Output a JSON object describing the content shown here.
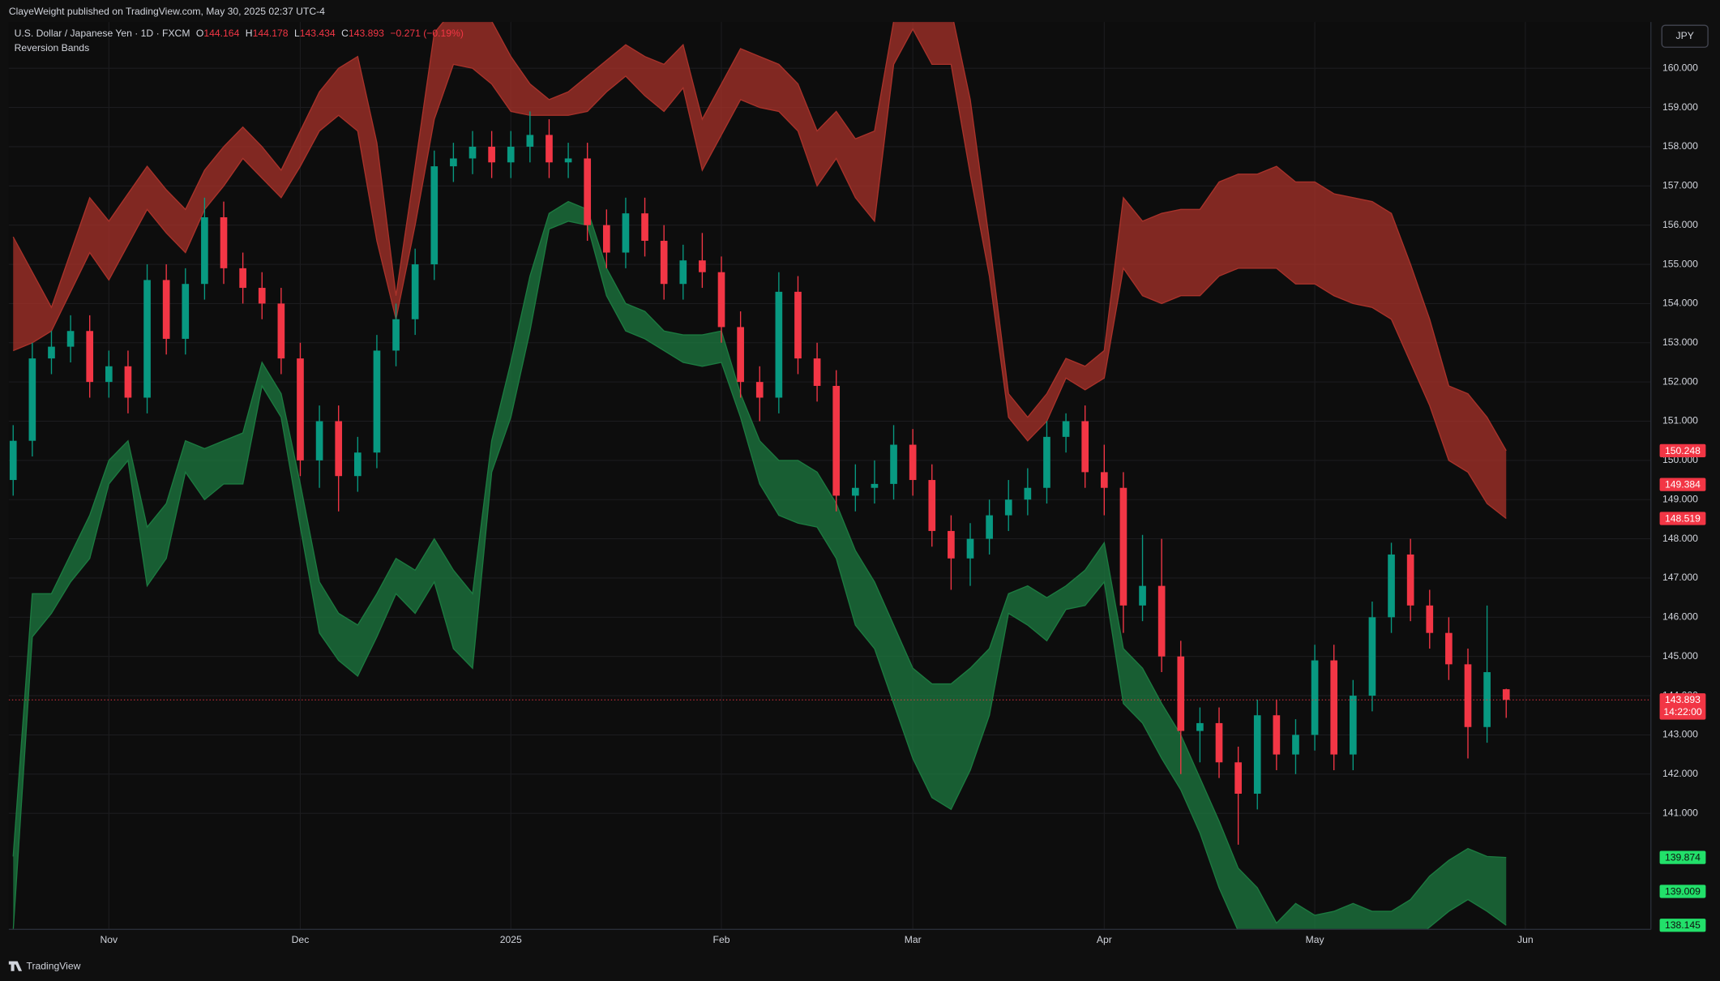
{
  "header": {
    "publisher": "ClayeWeight published on TradingView.com, May 30, 2025 02:37 UTC-4",
    "ohlc_letters": [
      "O",
      "H",
      "L",
      "C"
    ],
    "change": "−0.271 (−0.19%)",
    "indicator": "Reversion Bands",
    "currency": "JPY",
    "brand": "TradingView"
  },
  "chart_data": {
    "type": "candlestick",
    "title": "U.S. Dollar / Japanese Yen · 1D · FXCM",
    "categories": [
      null,
      null,
      null,
      null,
      null,
      "Nov",
      null,
      null,
      null,
      null,
      null,
      null,
      null,
      null,
      null,
      "Dec",
      null,
      null,
      null,
      null,
      null,
      null,
      null,
      null,
      null,
      null,
      "2025",
      null,
      null,
      null,
      null,
      null,
      null,
      null,
      null,
      null,
      null,
      "Feb",
      null,
      null,
      null,
      null,
      null,
      null,
      null,
      null,
      null,
      "Mar",
      null,
      null,
      null,
      null,
      null,
      null,
      null,
      null,
      null,
      "Apr",
      null,
      null,
      null,
      null,
      null,
      null,
      null,
      null,
      null,
      null,
      "May",
      null,
      null,
      null,
      null,
      null,
      null,
      null,
      null,
      null,
      null,
      "Jun"
    ],
    "open": [
      149.5,
      150.5,
      152.6,
      152.9,
      153.3,
      152.0,
      152.4,
      151.6,
      154.6,
      153.1,
      154.5,
      156.2,
      154.9,
      154.4,
      154.0,
      152.6,
      150.0,
      151.0,
      149.6,
      150.2,
      152.8,
      153.6,
      155.0,
      157.5,
      157.7,
      158.0,
      157.6,
      158.0,
      158.3,
      157.6,
      157.7,
      156.0,
      155.3,
      156.3,
      155.6,
      154.5,
      155.1,
      154.8,
      153.4,
      152.0,
      151.6,
      154.3,
      152.6,
      151.9,
      149.1,
      149.3,
      149.4,
      150.4,
      149.5,
      148.2,
      147.5,
      148.0,
      148.6,
      149.0,
      149.3,
      150.6,
      151.0,
      149.7,
      149.3,
      146.3,
      146.8,
      145.0,
      143.1,
      143.3,
      142.3,
      141.5,
      143.5,
      142.5,
      143.0,
      144.9,
      142.5,
      144.0,
      146.0,
      147.6,
      146.3,
      145.6,
      144.8,
      143.2,
      144.164,
      null
    ],
    "high": [
      150.9,
      153.0,
      153.3,
      153.7,
      153.7,
      152.8,
      152.8,
      155.0,
      155.0,
      154.9,
      156.7,
      156.6,
      155.3,
      154.8,
      154.4,
      153.0,
      151.4,
      151.4,
      150.6,
      153.2,
      154.0,
      155.4,
      157.9,
      158.1,
      158.4,
      158.4,
      158.4,
      158.9,
      158.7,
      158.1,
      158.1,
      156.4,
      156.7,
      156.7,
      156.0,
      155.5,
      155.8,
      155.2,
      153.8,
      152.4,
      154.8,
      154.7,
      153.0,
      152.3,
      149.9,
      150.0,
      150.9,
      150.8,
      149.9,
      148.6,
      148.4,
      149.0,
      149.5,
      149.8,
      151.0,
      151.2,
      151.4,
      150.4,
      149.7,
      148.1,
      148.0,
      145.4,
      143.7,
      143.7,
      142.7,
      143.9,
      143.9,
      143.4,
      145.3,
      145.3,
      144.4,
      146.4,
      147.9,
      148.0,
      146.7,
      146.0,
      145.2,
      146.3,
      144.178,
      null
    ],
    "low": [
      149.1,
      150.1,
      152.2,
      152.5,
      151.6,
      151.6,
      151.2,
      151.2,
      152.7,
      152.7,
      154.1,
      154.5,
      154.0,
      153.6,
      152.2,
      149.6,
      149.3,
      148.7,
      149.2,
      149.8,
      152.4,
      153.2,
      154.6,
      157.1,
      157.3,
      157.2,
      157.2,
      157.6,
      157.2,
      157.2,
      155.6,
      154.9,
      154.9,
      155.2,
      154.1,
      154.1,
      154.4,
      153.0,
      151.6,
      151.0,
      151.2,
      152.2,
      151.5,
      148.7,
      148.7,
      148.9,
      149.0,
      149.1,
      147.8,
      146.7,
      146.8,
      147.6,
      148.2,
      148.6,
      148.9,
      150.2,
      149.3,
      148.6,
      145.6,
      145.9,
      144.6,
      142.0,
      142.3,
      141.9,
      140.2,
      141.1,
      142.1,
      142.0,
      142.6,
      142.1,
      142.1,
      143.6,
      145.6,
      145.9,
      145.2,
      144.4,
      142.4,
      142.8,
      143.434,
      null
    ],
    "close": [
      150.5,
      152.6,
      152.9,
      153.3,
      152.0,
      152.4,
      151.6,
      154.6,
      153.1,
      154.5,
      156.2,
      154.9,
      154.4,
      154.0,
      152.6,
      150.0,
      151.0,
      149.6,
      150.2,
      152.8,
      153.6,
      155.0,
      157.5,
      157.7,
      158.0,
      157.6,
      158.0,
      158.3,
      157.6,
      157.7,
      156.0,
      155.3,
      156.3,
      155.6,
      154.5,
      155.1,
      154.8,
      153.4,
      152.0,
      151.6,
      154.3,
      152.6,
      151.9,
      149.1,
      149.3,
      149.4,
      150.4,
      149.5,
      148.2,
      147.5,
      148.0,
      148.6,
      149.0,
      149.3,
      150.6,
      151.0,
      149.7,
      149.3,
      146.3,
      146.8,
      145.0,
      143.1,
      143.3,
      142.3,
      141.5,
      143.5,
      142.5,
      143.0,
      144.9,
      142.5,
      144.0,
      146.0,
      147.6,
      146.3,
      145.6,
      144.8,
      143.2,
      144.6,
      143.893,
      null
    ],
    "change": "−0.271 (−0.19%)",
    "up_color": "#089981",
    "down_color": "#f23645",
    "bands": [
      {
        "color": "#a8322a",
        "tag_color": "#f23645",
        "upper": [
          155.7,
          154.8,
          153.9,
          155.3,
          156.7,
          156.1,
          156.8,
          157.5,
          156.9,
          156.4,
          157.4,
          158.0,
          158.5,
          158.0,
          157.4,
          158.4,
          159.4,
          160.0,
          160.3,
          158.1,
          154.2,
          157.5,
          160.9,
          161.5,
          161.6,
          161.2,
          160.3,
          159.6,
          159.2,
          159.4,
          159.8,
          160.2,
          160.6,
          160.3,
          160.1,
          160.6,
          158.7,
          159.6,
          160.5,
          160.3,
          160.1,
          159.6,
          158.4,
          158.9,
          158.2,
          158.4,
          161.2,
          161.7,
          161.5,
          161.5,
          159.2,
          155.6,
          151.7,
          151.1,
          151.7,
          152.6,
          152.4,
          152.8,
          156.7,
          156.1,
          156.3,
          156.4,
          156.4,
          157.1,
          157.3,
          157.3,
          157.5,
          157.1,
          157.1,
          156.8,
          156.7,
          156.6,
          156.3,
          155.0,
          153.6,
          151.9,
          151.7,
          151.1,
          150.248,
          null
        ],
        "lower": [
          152.8,
          153.0,
          153.3,
          154.3,
          155.3,
          154.6,
          155.5,
          156.4,
          155.8,
          155.3,
          156.4,
          157.0,
          157.7,
          157.2,
          156.7,
          157.5,
          158.4,
          158.8,
          158.4,
          155.6,
          153.6,
          156.0,
          158.7,
          160.1,
          160.0,
          159.6,
          158.9,
          158.8,
          158.8,
          158.8,
          158.9,
          159.4,
          159.8,
          159.3,
          158.9,
          159.5,
          157.4,
          158.3,
          159.2,
          159.0,
          158.9,
          158.4,
          157.0,
          157.7,
          156.7,
          156.1,
          160.1,
          161.0,
          160.1,
          160.1,
          157.3,
          154.7,
          151.1,
          150.5,
          151.0,
          152.1,
          151.8,
          152.1,
          154.9,
          154.2,
          154.0,
          154.2,
          154.2,
          154.7,
          154.9,
          154.9,
          154.9,
          154.5,
          154.5,
          154.2,
          154.0,
          153.9,
          153.6,
          152.5,
          151.4,
          150.0,
          149.7,
          148.9,
          148.519,
          null
        ]
      },
      {
        "color": "#1c7a40",
        "tag_color": "#22e06a",
        "upper": [
          139.9,
          146.6,
          146.6,
          147.6,
          148.6,
          150.0,
          150.5,
          148.3,
          148.9,
          150.5,
          150.3,
          150.5,
          150.7,
          152.5,
          151.7,
          149.4,
          146.9,
          146.1,
          145.8,
          146.6,
          147.5,
          147.2,
          148.0,
          147.2,
          146.6,
          150.5,
          152.5,
          154.7,
          156.3,
          156.6,
          156.4,
          154.9,
          154.0,
          153.8,
          153.3,
          153.2,
          153.2,
          153.3,
          151.7,
          150.5,
          150.0,
          150.0,
          149.7,
          148.9,
          147.7,
          146.9,
          145.8,
          144.7,
          144.3,
          144.3,
          144.7,
          145.2,
          146.6,
          146.8,
          146.5,
          146.8,
          147.2,
          147.9,
          145.2,
          144.7,
          143.8,
          143.0,
          141.9,
          140.8,
          139.6,
          139.1,
          138.2,
          138.7,
          138.4,
          138.5,
          138.7,
          138.5,
          138.5,
          138.8,
          139.4,
          139.8,
          140.1,
          139.9,
          139.874,
          null
        ],
        "lower": [
          138.0,
          145.5,
          146.1,
          146.9,
          147.5,
          149.4,
          150.0,
          146.8,
          147.5,
          149.7,
          149.0,
          149.4,
          149.4,
          151.9,
          151.1,
          148.3,
          145.6,
          144.9,
          144.5,
          145.5,
          146.6,
          146.1,
          146.9,
          145.2,
          144.7,
          149.7,
          151.1,
          153.3,
          155.9,
          156.1,
          156.0,
          154.2,
          153.3,
          153.1,
          152.8,
          152.5,
          152.4,
          152.5,
          151.1,
          149.4,
          148.6,
          148.4,
          148.3,
          147.5,
          145.8,
          145.2,
          143.8,
          142.4,
          141.4,
          141.1,
          142.1,
          143.5,
          146.1,
          145.8,
          145.4,
          146.2,
          146.3,
          146.9,
          143.8,
          143.3,
          142.4,
          141.6,
          140.5,
          139.1,
          138.0,
          137.7,
          137.1,
          137.4,
          137.3,
          137.3,
          137.4,
          137.4,
          137.4,
          137.7,
          138.1,
          138.5,
          138.8,
          138.5,
          138.145,
          null
        ]
      }
    ],
    "price_tags": [
      {
        "value": 149.384,
        "color": "#f23645"
      },
      {
        "value": 139.009,
        "color": "#22e06a"
      }
    ],
    "countdown": "14:22:00",
    "ylim": [
      138.04,
      161.18
    ],
    "yticks": [
      {
        "value": 141,
        "label": "141.000"
      },
      {
        "value": 142,
        "label": "142.000"
      },
      {
        "value": 143,
        "label": "143.000"
      },
      {
        "value": 144,
        "label": "144.000"
      },
      {
        "value": 145,
        "label": "145.000"
      },
      {
        "value": 146,
        "label": "146.000"
      },
      {
        "value": 147,
        "label": "147.000"
      },
      {
        "value": 148,
        "label": "148.000"
      },
      {
        "value": 149,
        "label": "149.000"
      },
      {
        "value": 150,
        "label": "150.000"
      },
      {
        "value": 151,
        "label": "151.000"
      },
      {
        "value": 152,
        "label": "152.000"
      },
      {
        "value": 153,
        "label": "153.000"
      },
      {
        "value": 154,
        "label": "154.000"
      },
      {
        "value": 155,
        "label": "155.000"
      },
      {
        "value": 156,
        "label": "156.000"
      },
      {
        "value": 157,
        "label": "157.000"
      },
      {
        "value": 158,
        "label": "158.000"
      },
      {
        "value": 159,
        "label": "159.000"
      },
      {
        "value": 160,
        "label": "160.000"
      }
    ],
    "grid": true
  }
}
